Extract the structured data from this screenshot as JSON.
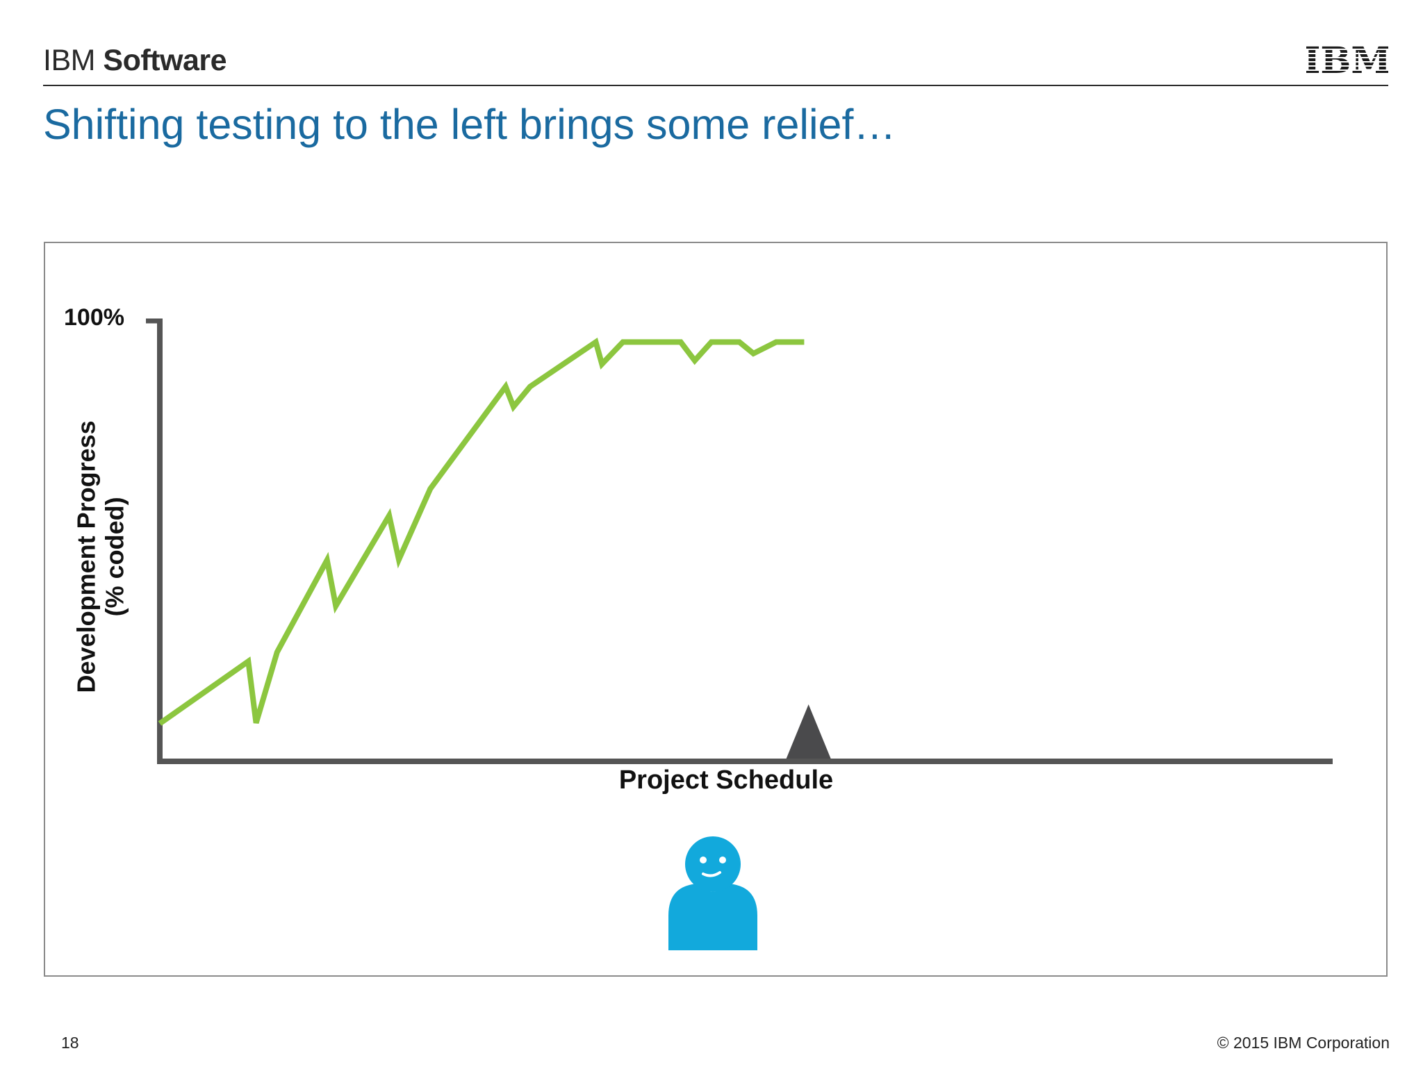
{
  "header": {
    "brand_company": "IBM",
    "brand_product": "Software",
    "logo_icon": "ibm-striped-logo-icon",
    "logo_text": "IBM",
    "title": "Shifting testing to the left brings some relief…"
  },
  "chart_data": {
    "type": "line",
    "title": "Shifting testing to the left brings some relief…",
    "xlabel": "Project Schedule",
    "ylabel_lines": [
      "Development Progress",
      "(% coded)"
    ],
    "ytick_label": "100%",
    "ylim": [
      0,
      100
    ],
    "xlim": [
      0,
      100
    ],
    "grid": false,
    "legend": "none",
    "line_color": "#8cc63f",
    "axis_color": "#555555",
    "series": [
      {
        "x": [
          0,
          10.1,
          11.0,
          13.4,
          19.1,
          20.1,
          26.2,
          27.3,
          30.9,
          39.5,
          40.4,
          42.3,
          49.8,
          50.5,
          52.9,
          59.5,
          61.1,
          63.0,
          66.2,
          67.8,
          70.4,
          73.6
        ],
        "y": [
          8.6,
          22.7,
          8.7,
          24.8,
          45.7,
          35.3,
          55.8,
          45.8,
          61.9,
          85.1,
          80.5,
          85.1,
          95.2,
          90.2,
          95.2,
          95.2,
          91.0,
          95.2,
          95.2,
          92.6,
          95.2,
          95.2
        ]
      }
    ],
    "marker": {
      "shape": "triangle",
      "x": 74.1,
      "color": "#4a4a4c"
    }
  },
  "avatar": {
    "icon": "smiling-person-icon",
    "color": "#12a9dc"
  },
  "footer": {
    "page_number": "18",
    "copyright": "© 2015 IBM Corporation"
  }
}
